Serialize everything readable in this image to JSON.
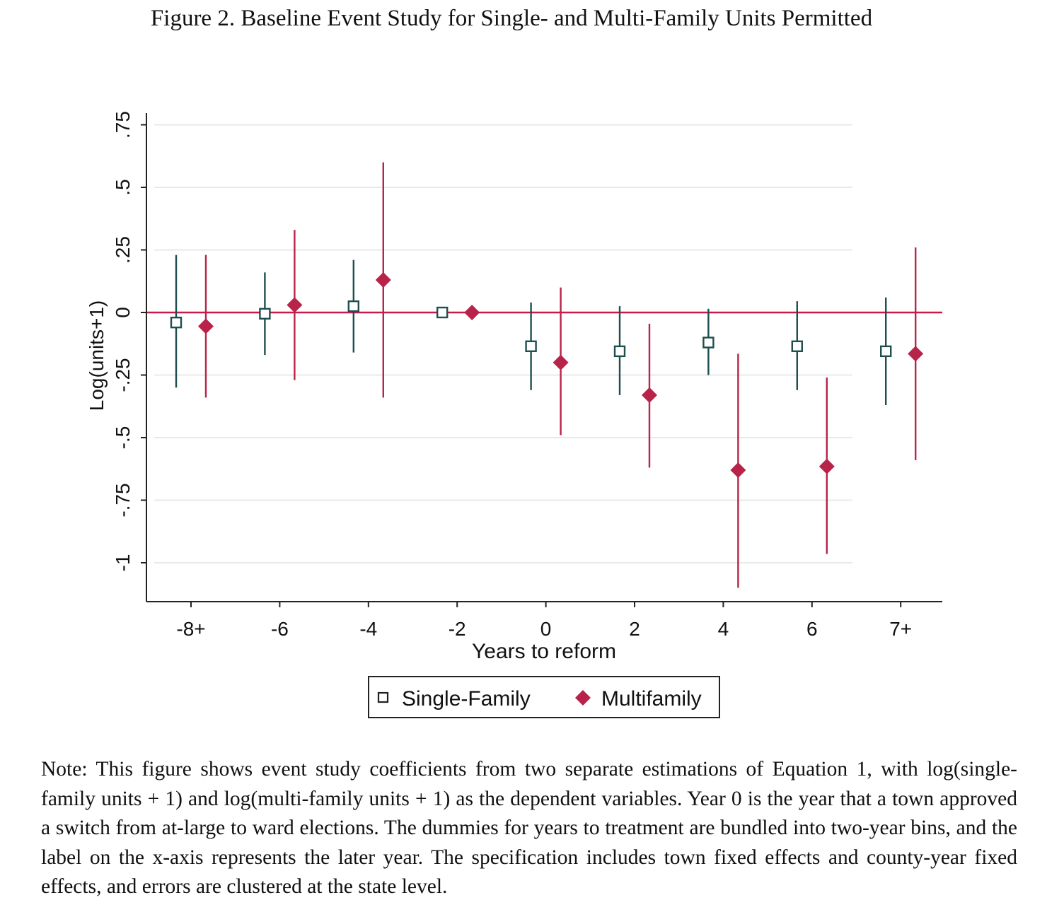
{
  "figure_title": "Figure 2. Baseline Event Study for Single- and Multi-Family Units Permitted",
  "note": "Note: This figure shows event study coefficients from two separate estimations of Equation 1, with log(single-family units + 1) and log(multi-family units + 1) as the dependent variables. Year 0 is the year that a town approved a switch from at-large to ward elections. The dummies for years to treatment are bundled into two-year bins, and the label on the x-axis represents the later year. The specification includes town fixed effects and county-year fixed effects, and errors are clustered at the state level.",
  "colors": {
    "multifamily": "#b8234a",
    "single_family": "#1f4e4e",
    "zero_line": "#c8194b",
    "grid": "#e9e9e9"
  },
  "chart_data": {
    "type": "scatter",
    "title": "",
    "xlabel": "Years to reform",
    "ylabel": "Log(units+1)",
    "ylim": [
      -1.15,
      0.75
    ],
    "yticks": [
      -1,
      -0.75,
      -0.5,
      -0.25,
      0,
      0.25,
      0.5,
      0.75
    ],
    "ytick_labels": [
      "-1",
      "-.75",
      "-.5",
      "-.25",
      "0",
      ".25",
      ".5",
      ".75"
    ],
    "categories": [
      "-8+",
      "-6",
      "-4",
      "-2",
      "0",
      "2",
      "4",
      "6",
      "7+"
    ],
    "grid": true,
    "reference_line": 0,
    "legend_placement": "bottom-center",
    "series": [
      {
        "name": "Single-Family",
        "marker": "hollow-square",
        "values": [
          -0.04,
          -0.005,
          0.025,
          0.0,
          -0.135,
          -0.155,
          -0.12,
          -0.135,
          -0.155
        ],
        "ci_low": [
          -0.3,
          -0.17,
          -0.16,
          0.0,
          -0.31,
          -0.33,
          -0.25,
          -0.31,
          -0.37
        ],
        "ci_high": [
          0.23,
          0.16,
          0.21,
          0.0,
          0.04,
          0.025,
          0.015,
          0.045,
          0.06
        ]
      },
      {
        "name": "Multifamily",
        "marker": "filled-diamond",
        "values": [
          -0.055,
          0.03,
          0.13,
          0.0,
          -0.2,
          -0.33,
          -0.63,
          -0.615,
          -0.165
        ],
        "ci_low": [
          -0.34,
          -0.27,
          -0.34,
          0.0,
          -0.49,
          -0.62,
          -1.1,
          -0.965,
          -0.59
        ],
        "ci_high": [
          0.23,
          0.33,
          0.6,
          0.0,
          0.1,
          -0.045,
          -0.165,
          -0.26,
          0.26
        ]
      }
    ]
  }
}
